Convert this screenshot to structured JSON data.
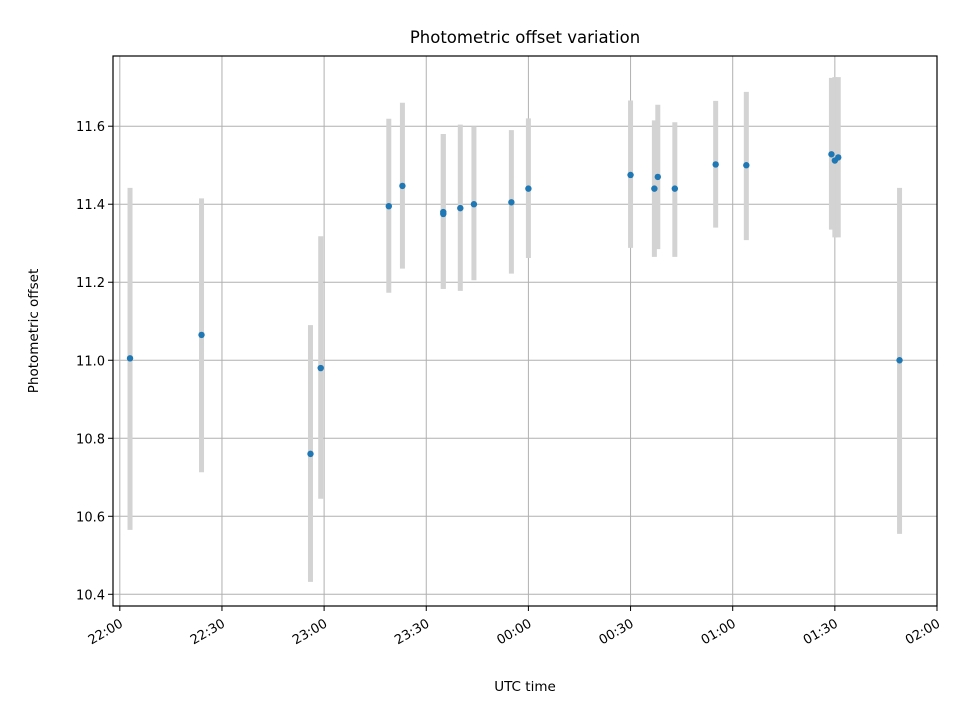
{
  "chart_data": {
    "type": "scatter",
    "title": "Photometric offset variation",
    "xlabel": "UTC time",
    "ylabel": "Photometric offset",
    "grid": true,
    "legend": "none",
    "xlim": [
      "21:58",
      "02:00"
    ],
    "ylim": [
      10.37,
      11.78
    ],
    "x_ticks": [
      "22:00",
      "22:30",
      "23:00",
      "23:30",
      "00:00",
      "00:30",
      "01:00",
      "01:30",
      "02:00"
    ],
    "y_ticks": [
      10.4,
      10.6,
      10.8,
      11.0,
      11.2,
      11.4,
      11.6
    ],
    "colors": {
      "points": "#1f77b4",
      "error_bars": "#d3d3d3"
    },
    "points": [
      {
        "x": "22:03",
        "y": 11.005,
        "y_low": 10.565,
        "y_high": 11.442
      },
      {
        "x": "22:24",
        "y": 11.065,
        "y_low": 10.713,
        "y_high": 11.415
      },
      {
        "x": "22:56",
        "y": 10.76,
        "y_low": 10.432,
        "y_high": 11.09
      },
      {
        "x": "22:59",
        "y": 10.98,
        "y_low": 10.645,
        "y_high": 11.318
      },
      {
        "x": "23:19",
        "y": 11.395,
        "y_low": 11.173,
        "y_high": 11.619
      },
      {
        "x": "23:23",
        "y": 11.447,
        "y_low": 11.235,
        "y_high": 11.66
      },
      {
        "x": "23:35",
        "y": 11.375,
        "y_low": 11.183,
        "y_high": 11.58
      },
      {
        "x": "23:35",
        "y": 11.38,
        "y_low": 11.183,
        "y_high": 11.58
      },
      {
        "x": "23:40",
        "y": 11.39,
        "y_low": 11.178,
        "y_high": 11.604
      },
      {
        "x": "23:44",
        "y": 11.4,
        "y_low": 11.205,
        "y_high": 11.6
      },
      {
        "x": "23:55",
        "y": 11.405,
        "y_low": 11.222,
        "y_high": 11.59
      },
      {
        "x": "00:00",
        "y": 11.44,
        "y_low": 11.262,
        "y_high": 11.62
      },
      {
        "x": "00:30",
        "y": 11.475,
        "y_low": 11.288,
        "y_high": 11.666
      },
      {
        "x": "00:37",
        "y": 11.44,
        "y_low": 11.265,
        "y_high": 11.615
      },
      {
        "x": "00:38",
        "y": 11.47,
        "y_low": 11.285,
        "y_high": 11.655
      },
      {
        "x": "00:43",
        "y": 11.44,
        "y_low": 11.265,
        "y_high": 11.61
      },
      {
        "x": "00:55",
        "y": 11.502,
        "y_low": 11.34,
        "y_high": 11.665
      },
      {
        "x": "01:04",
        "y": 11.5,
        "y_low": 11.308,
        "y_high": 11.688
      },
      {
        "x": "01:29",
        "y": 11.528,
        "y_low": 11.335,
        "y_high": 11.724
      },
      {
        "x": "01:30",
        "y": 11.512,
        "y_low": 11.315,
        "y_high": 11.726
      },
      {
        "x": "01:31",
        "y": 11.52,
        "y_low": 11.315,
        "y_high": 11.726
      },
      {
        "x": "01:49",
        "y": 11.0,
        "y_low": 10.555,
        "y_high": 11.442
      }
    ]
  }
}
